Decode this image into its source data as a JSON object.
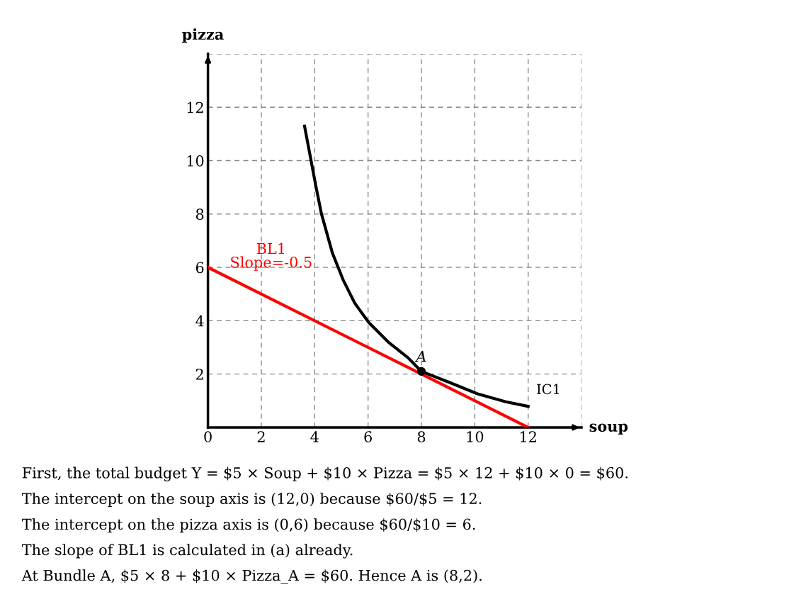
{
  "chart_data": {
    "type": "line",
    "xlabel": "soup",
    "ylabel": "pizza",
    "series": [
      {
        "color": "#ff0000",
        "x": [
          0,
          12
        ],
        "values": [
          6,
          0
        ]
      },
      {
        "name": "IC1",
        "color": "#000000",
        "x": [
          3.62,
          4.04,
          4.25,
          4.66,
          5.08,
          5.5,
          6.03,
          6.76,
          7.49,
          8.0,
          9.07,
          10.1,
          11.16,
          12
        ],
        "values": [
          11.29,
          9.07,
          8.02,
          6.55,
          5.5,
          4.66,
          3.93,
          3.2,
          2.62,
          2.1,
          1.68,
          1.26,
          0.96,
          0.79
        ]
      },
      {
        "type": "scatter",
        "marker": "circle",
        "color": "#000000",
        "x": [
          8
        ],
        "values": [
          2.1
        ]
      }
    ],
    "xlim": [
      0,
      14
    ],
    "ylim": [
      0,
      14
    ],
    "xticks": [
      0,
      2,
      4,
      6,
      8,
      10,
      12,
      {
        "value": 14,
        "label": null
      }
    ],
    "yticks": [
      2,
      4,
      6,
      8,
      10,
      12,
      {
        "value": 14,
        "label": null
      }
    ],
    "grid": true,
    "line_style": "solid",
    "annotations": [
      {
        "text": "BL1\nSlope=-0.5",
        "x": 2,
        "y": 5
      },
      {
        "text": "A",
        "x": 8,
        "y": 2.1
      },
      "First, the total budget Y = $5 × Soup + $10 × Pizza = $5 × 12 + $10 × 0 = $60.",
      "The intercept on the soup axis is (12,0) because $60/$5 = 12.",
      "The intercept on the pizza axis is (0,6) because $60/$10 = 6.",
      "The slope of BL1 is calculated in (a) already.",
      "At Bundle A, $5 × 8 + $10 × Pizza_A = $60. Hence A is (8,2)."
    ]
  }
}
